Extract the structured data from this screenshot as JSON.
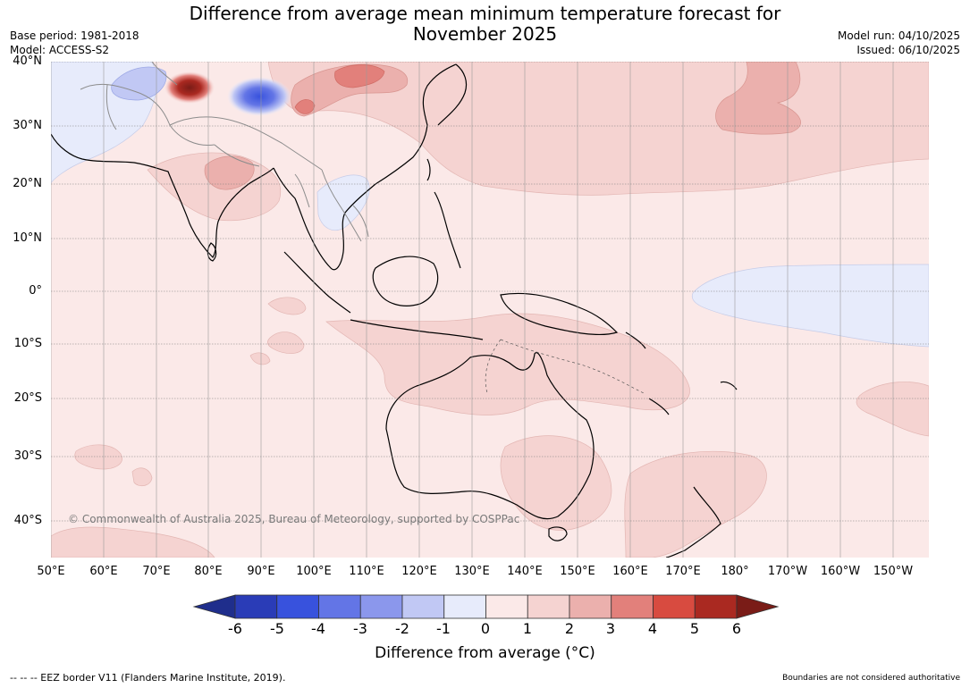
{
  "title": "Difference from average mean minimum temperature forecast for November 2025",
  "title_line1": "Difference from average mean minimum temperature forecast for",
  "title_line2": "November 2025",
  "meta_left": [
    "Base period: 1981-2018",
    "Model: ACCESS-S2"
  ],
  "meta_right": [
    "Model run: 04/10/2025",
    "Issued: 06/10/2025"
  ],
  "lat_labels": [
    "40°N",
    "30°N",
    "20°N",
    "10°N",
    "0°",
    "10°S",
    "20°S",
    "30°S",
    "40°S"
  ],
  "lon_labels": [
    "50°E",
    "60°E",
    "70°E",
    "80°E",
    "90°E",
    "100°E",
    "110°E",
    "120°E",
    "130°E",
    "140°E",
    "150°E",
    "160°E",
    "170°E",
    "180°",
    "170°W",
    "160°W",
    "150°W"
  ],
  "copyright": "© Commonwealth of Australia 2025, Bureau of Meteorology, supported by COSPPac",
  "colorbar": {
    "ticks": [
      "-6",
      "-5",
      "-4",
      "-3",
      "-2",
      "-1",
      "0",
      "1",
      "2",
      "3",
      "4",
      "5",
      "6"
    ],
    "colors": [
      "#1f2e8c",
      "#2a3cb7",
      "#3852dd",
      "#6375e6",
      "#8b97ec",
      "#c1c8f4",
      "#e7ebfb",
      "#fbe9e8",
      "#f5d3d1",
      "#ebb0ad",
      "#e2807b",
      "#d84b40",
      "#aa2921",
      "#7a1c17"
    ],
    "label": "Difference from average (°C)"
  },
  "footer_left": "-- -- -- EEZ border V11 (Flanders Marine Institute, 2019).",
  "footer_right": "Boundaries are not considered authoritative"
}
